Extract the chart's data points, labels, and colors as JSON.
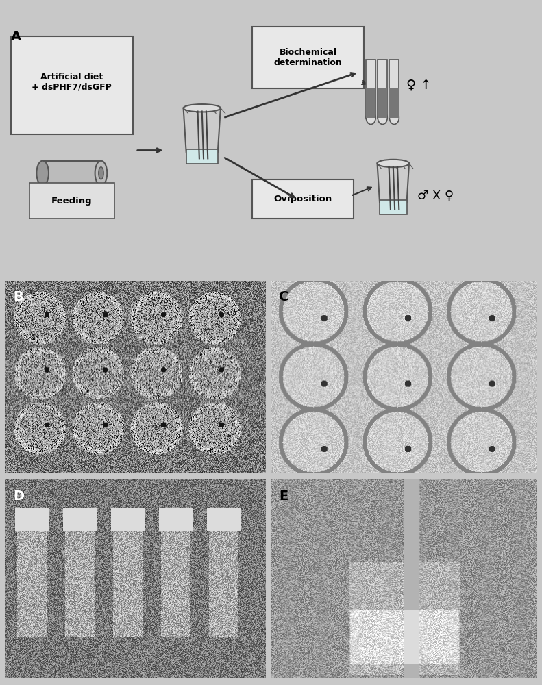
{
  "panel_A_label": "A",
  "panel_B_label": "B",
  "panel_C_label": "C",
  "panel_D_label": "D",
  "panel_E_label": "E",
  "box1_text": "Artificial diet\n+ dsPHF7/dsGFP",
  "feeding_text": "Feeding",
  "biochem_text": "Biochemical\ndetermination",
  "oviposition_text": "Oviposition",
  "female_male_text": "♀ ↑",
  "male_x_female_text": "♂ X ♀",
  "bg_color": "#e8e8e8",
  "panel_bg": "#d0d0d0",
  "box_edge_color": "#555555",
  "box_face_color": "#e0e0e0",
  "arrow_color": "#333333",
  "tube_color": "#888888",
  "label_fontsize": 14,
  "text_fontsize": 10,
  "symbol_fontsize": 14
}
